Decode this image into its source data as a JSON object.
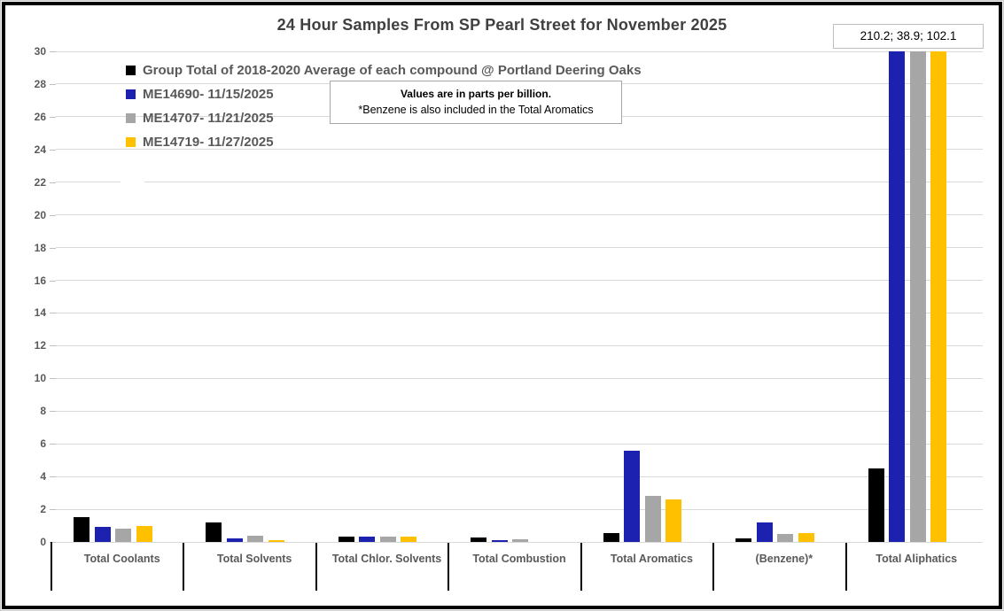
{
  "title": "24 Hour Samples From SP Pearl Street for November 2025",
  "note": {
    "line1": "Values are in parts per billion.",
    "line2": "*Benzene is also included in the Total Aromatics"
  },
  "annotation": "210.2; 38.9; 102.1",
  "colors": {
    "title_text": "#404040",
    "axis_text": "#595959",
    "gridline": "#d9d9d9",
    "series_black": "#000000",
    "series_blue": "#1c21b0",
    "series_gray": "#a6a6a6",
    "series_yellow": "#ffc000"
  },
  "chart_data": {
    "type": "bar",
    "title": "24 Hour Samples From SP Pearl Street for November 2025",
    "categories": [
      "Total Coolants",
      "Total Solvents",
      "Total Chlor. Solvents",
      "Total Combustion",
      "Total Aromatics",
      "(Benzene)*",
      "Total Aliphatics"
    ],
    "series": [
      {
        "name": "Group Total of 2018-2020 Average of each compound @ Portland Deering Oaks",
        "color": "#000000",
        "values": [
          1.5,
          1.2,
          0.35,
          0.25,
          0.55,
          0.2,
          4.5
        ]
      },
      {
        "name": "ME14690- 11/15/2025",
        "color": "#1c21b0",
        "values": [
          0.9,
          0.2,
          0.3,
          0.1,
          5.6,
          1.2,
          210.2
        ]
      },
      {
        "name": "ME14707- 11/21/2025",
        "color": "#a6a6a6",
        "values": [
          0.8,
          0.4,
          0.3,
          0.15,
          2.8,
          0.5,
          38.9
        ]
      },
      {
        "name": "ME14719- 11/27/2025",
        "color": "#ffc000",
        "values": [
          0.95,
          0.1,
          0.3,
          0,
          2.6,
          0.55,
          102.1
        ]
      }
    ],
    "xlabel": "",
    "ylabel": "",
    "ylim": [
      0,
      30
    ],
    "ytick_step": 2,
    "grid": true,
    "legend_position": "top-left",
    "bars_clipped_at_ymax": [
      "Total Aliphatics: 210.2",
      "Total Aliphatics: 38.9",
      "Total Aliphatics: 102.1"
    ],
    "annotation_top_right": "210.2; 38.9; 102.1"
  }
}
